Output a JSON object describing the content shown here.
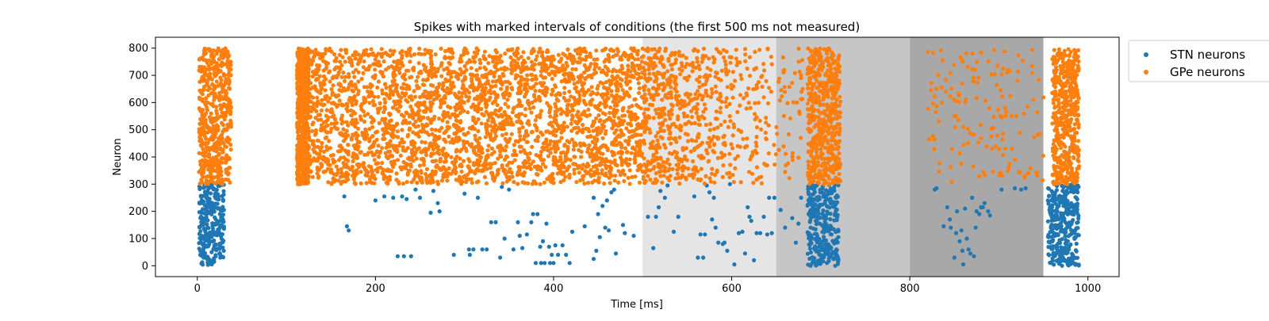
{
  "chart_data": {
    "type": "scatter",
    "title": "Spikes with marked intervals of conditions (the first 500 ms not measured)",
    "xlabel": "Time [ms]",
    "ylabel": "Neuron",
    "xlim": [
      -47,
      1035
    ],
    "ylim": [
      -40,
      840
    ],
    "xticks": [
      0,
      200,
      400,
      600,
      800,
      1000
    ],
    "yticks": [
      0,
      100,
      200,
      300,
      400,
      500,
      600,
      700,
      800
    ],
    "grid": false,
    "legend_position": "upper right, outside plot",
    "intervals": [
      {
        "x0": 500,
        "x1": 650,
        "color": "#e5e5e5"
      },
      {
        "x0": 650,
        "x1": 800,
        "color": "#c6c6c6"
      },
      {
        "x0": 800,
        "x1": 950,
        "color": "#a8a8a8"
      }
    ],
    "series": [
      {
        "name": "STN neurons",
        "color": "#1f77b4",
        "neuron_range": [
          0,
          299
        ],
        "bursts": [
          {
            "t0": 2,
            "t1": 30,
            "fraction": 0.5
          },
          {
            "t0": 685,
            "t1": 720,
            "fraction": 0.55
          },
          {
            "t0": 955,
            "t1": 990,
            "fraction": 0.55
          }
        ],
        "sparse_spikes": [
          [
            165,
            255
          ],
          [
            168,
            145
          ],
          [
            170,
            130
          ],
          [
            200,
            240
          ],
          [
            210,
            255
          ],
          [
            220,
            250
          ],
          [
            225,
            35
          ],
          [
            230,
            255
          ],
          [
            232,
            35
          ],
          [
            235,
            245
          ],
          [
            240,
            35
          ],
          [
            245,
            280
          ],
          [
            250,
            250
          ],
          [
            262,
            195
          ],
          [
            265,
            275
          ],
          [
            270,
            230
          ],
          [
            272,
            200
          ],
          [
            288,
            40
          ],
          [
            300,
            265
          ],
          [
            305,
            60
          ],
          [
            306,
            40
          ],
          [
            310,
            60
          ],
          [
            315,
            250
          ],
          [
            320,
            60
          ],
          [
            325,
            60
          ],
          [
            330,
            160
          ],
          [
            335,
            160
          ],
          [
            340,
            30
          ],
          [
            342,
            290
          ],
          [
            345,
            100
          ],
          [
            350,
            280
          ],
          [
            355,
            60
          ],
          [
            360,
            160
          ],
          [
            362,
            110
          ],
          [
            365,
            65
          ],
          [
            370,
            115
          ],
          [
            375,
            160
          ],
          [
            377,
            190
          ],
          [
            380,
            10
          ],
          [
            382,
            190
          ],
          [
            385,
            70
          ],
          [
            386,
            10
          ],
          [
            388,
            90
          ],
          [
            390,
            10
          ],
          [
            392,
            155
          ],
          [
            395,
            70
          ],
          [
            396,
            10
          ],
          [
            398,
            40
          ],
          [
            400,
            10
          ],
          [
            402,
            75
          ],
          [
            405,
            40
          ],
          [
            410,
            75
          ],
          [
            414,
            40
          ],
          [
            418,
            10
          ],
          [
            421,
            125
          ],
          [
            435,
            145
          ],
          [
            445,
            25
          ],
          [
            448,
            55
          ],
          [
            450,
            190
          ],
          [
            452,
            105
          ],
          [
            445,
            250
          ],
          [
            455,
            220
          ],
          [
            458,
            140
          ],
          [
            460,
            240
          ],
          [
            462,
            130
          ],
          [
            465,
            270
          ],
          [
            468,
            280
          ],
          [
            470,
            45
          ],
          [
            478,
            150
          ],
          [
            480,
            120
          ],
          [
            490,
            110
          ],
          [
            506,
            180
          ],
          [
            512,
            65
          ],
          [
            515,
            180
          ],
          [
            518,
            215
          ],
          [
            520,
            275
          ],
          [
            525,
            250
          ],
          [
            528,
            295
          ],
          [
            535,
            125
          ],
          [
            540,
            180
          ],
          [
            558,
            255
          ],
          [
            562,
            30
          ],
          [
            565,
            115
          ],
          [
            568,
            30
          ],
          [
            570,
            115
          ],
          [
            572,
            295
          ],
          [
            575,
            270
          ],
          [
            578,
            170
          ],
          [
            580,
            250
          ],
          [
            582,
            140
          ],
          [
            585,
            85
          ],
          [
            590,
            80
          ],
          [
            592,
            85
          ],
          [
            595,
            55
          ],
          [
            598,
            300
          ],
          [
            603,
            5
          ],
          [
            608,
            120
          ],
          [
            612,
            125
          ],
          [
            615,
            45
          ],
          [
            618,
            215
          ],
          [
            620,
            180
          ],
          [
            622,
            165
          ],
          [
            625,
            20
          ],
          [
            628,
            120
          ],
          [
            632,
            120
          ],
          [
            636,
            180
          ],
          [
            640,
            115
          ],
          [
            642,
            250
          ],
          [
            645,
            120
          ],
          [
            648,
            250
          ],
          [
            655,
            205
          ],
          [
            660,
            140
          ],
          [
            668,
            175
          ],
          [
            672,
            85
          ],
          [
            675,
            155
          ],
          [
            678,
            250
          ],
          [
            828,
            280
          ],
          [
            830,
            285
          ],
          [
            838,
            145
          ],
          [
            842,
            215
          ],
          [
            845,
            170
          ],
          [
            846,
            140
          ],
          [
            850,
            30
          ],
          [
            852,
            120
          ],
          [
            853,
            200
          ],
          [
            856,
            90
          ],
          [
            858,
            130
          ],
          [
            859,
            55
          ],
          [
            860,
            5
          ],
          [
            862,
            210
          ],
          [
            864,
            100
          ],
          [
            866,
            60
          ],
          [
            868,
            45
          ],
          [
            870,
            250
          ],
          [
            872,
            35
          ],
          [
            874,
            140
          ],
          [
            875,
            200
          ],
          [
            878,
            190
          ],
          [
            880,
            215
          ],
          [
            882,
            215
          ],
          [
            884,
            230
          ],
          [
            888,
            200
          ],
          [
            890,
            185
          ],
          [
            903,
            280
          ],
          [
            918,
            285
          ],
          [
            925,
            280
          ],
          [
            930,
            285
          ]
        ]
      },
      {
        "name": "GPe neurons",
        "color": "#ff7f0e",
        "neuron_range": [
          300,
          799
        ],
        "bursts": [
          {
            "t0": 2,
            "t1": 38,
            "fraction": 0.55
          },
          {
            "t0": 685,
            "t1": 722,
            "fraction": 0.6
          },
          {
            "t0": 960,
            "t1": 990,
            "fraction": 0.55
          }
        ],
        "dense_band": {
          "t0": 112,
          "t1": 680,
          "edge_band": [
            112,
            125
          ],
          "density": 0.06,
          "decay_after": 500
        },
        "sparse_region": {
          "t0": 818,
          "t1": 950,
          "neuron_range": [
            305,
            800
          ],
          "count": 150
        }
      }
    ]
  }
}
